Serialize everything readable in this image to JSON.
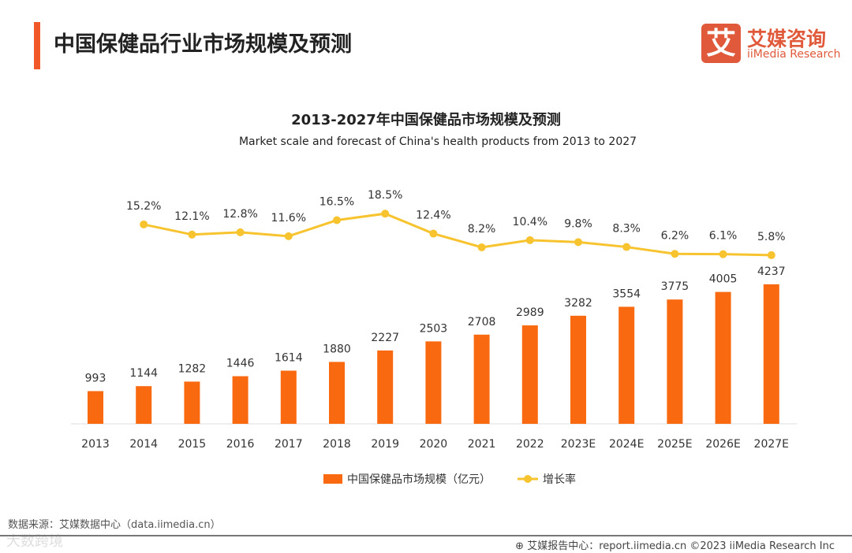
{
  "header": {
    "title": "中国保健品行业市场规模及预测",
    "logo_mark": "艾",
    "logo_cn": "艾媒咨询",
    "logo_en": "iiMedia Research"
  },
  "chart_data": {
    "type": "bar+line",
    "title": "2013-2027年中国保健品市场规模及预测",
    "subtitle": "Market scale and forecast of China's health products from 2013 to 2027",
    "categories": [
      "2013",
      "2014",
      "2015",
      "2016",
      "2017",
      "2018",
      "2019",
      "2020",
      "2021",
      "2022",
      "2023E",
      "2024E",
      "2025E",
      "2026E",
      "2027E"
    ],
    "series": [
      {
        "name": "中国保健品市场规模（亿元）",
        "type": "bar",
        "color": "#f96a10",
        "values": [
          993,
          1144,
          1282,
          1446,
          1614,
          1880,
          2227,
          2503,
          2708,
          2989,
          3282,
          3554,
          3775,
          4005,
          4237
        ]
      },
      {
        "name": "增长率",
        "type": "line",
        "color": "#f7c32e",
        "values": [
          null,
          15.2,
          12.1,
          12.8,
          11.6,
          16.5,
          18.5,
          12.4,
          8.2,
          10.4,
          9.8,
          8.3,
          6.2,
          6.1,
          5.8
        ],
        "labels": [
          null,
          "15.2%",
          "12.1%",
          "12.8%",
          "11.6%",
          "16.5%",
          "18.5%",
          "12.4%",
          "8.2%",
          "10.4%",
          "9.8%",
          "8.3%",
          "6.2%",
          "6.1%",
          "5.8%"
        ]
      }
    ],
    "legend_position": "bottom"
  },
  "footer": {
    "source": "数据来源：艾媒数据中心（data.iimedia.cn）",
    "watermark": "大数跨境",
    "credit": "艾媒报告中心：report.iimedia.cn ©2023  iiMedia Research  Inc"
  }
}
